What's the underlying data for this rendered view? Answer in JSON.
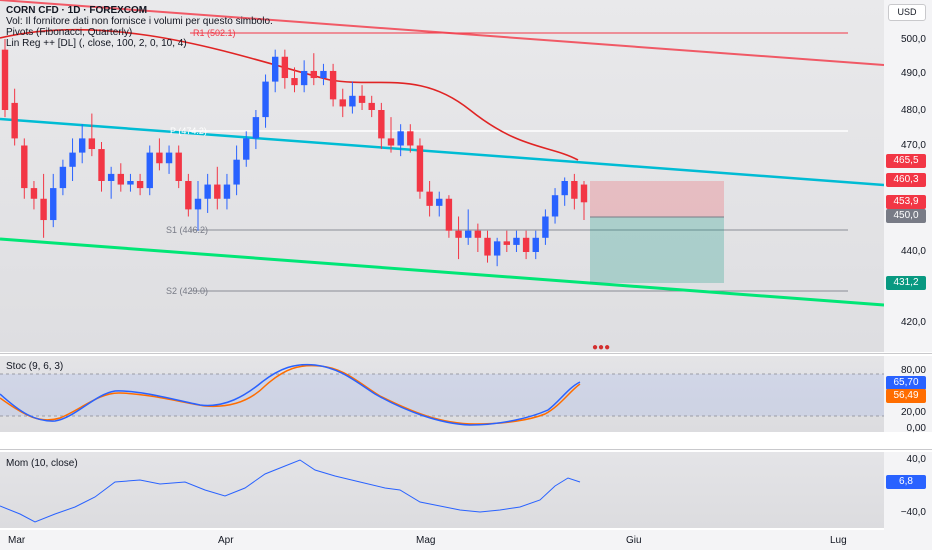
{
  "header": {
    "symbol_line": "CORN CFD · 1D · FOREXCOM",
    "vol_line": "Vol: Il fornitore dati non fornisce i volumi per questo simbolo.",
    "pivots_line": "Pivots (Fibonacci, Quarterly)",
    "linreg_line": "Lin Reg ++ [DL] (, close, 100, 2, 0, 10, 4)"
  },
  "currency_button": "USD",
  "pivots": {
    "r1": "R1 (502.1)",
    "p": "P (474.2)",
    "s1": "S1 (446.2)",
    "s2": "S2 (429.0)"
  },
  "price_axis": {
    "ticks": [
      "500,0",
      "490,0",
      "480,0",
      "470,0",
      "440,0",
      "420,0"
    ],
    "tags": [
      {
        "label": "465,5",
        "color": "#f23645"
      },
      {
        "label": "460,3",
        "color": "#f23645"
      },
      {
        "label": "453,9",
        "color": "#f23645"
      },
      {
        "label": "450,0",
        "color": "#787b86"
      },
      {
        "label": "431,2",
        "color": "#089981"
      }
    ]
  },
  "stoch": {
    "title": "Stoc (9, 6, 3)",
    "ticks": [
      "80,00",
      "20,00",
      "0,00"
    ],
    "k_value": "65,70",
    "d_value": "56,49",
    "k_color": "#2962ff",
    "d_color": "#ff6d00"
  },
  "momentum": {
    "title": "Mom (10, close)",
    "ticks": [
      "40,0",
      "−40,0"
    ],
    "value": "6,8",
    "color": "#2962ff"
  },
  "time_axis": [
    "Mar",
    "Apr",
    "Mag",
    "Giu",
    "Lug"
  ],
  "colors": {
    "up": "#2962ff",
    "down": "#f23645",
    "upper_channel": "#f23645",
    "mid_channel": "#00bcd4",
    "lower_channel": "#00e676"
  },
  "candles": [
    {
      "o": 497,
      "h": 500,
      "l": 478,
      "c": 480
    },
    {
      "o": 482,
      "h": 486,
      "l": 470,
      "c": 472
    },
    {
      "o": 470,
      "h": 472,
      "l": 455,
      "c": 458
    },
    {
      "o": 458,
      "h": 460,
      "l": 452,
      "c": 455
    },
    {
      "o": 455,
      "h": 462,
      "l": 444,
      "c": 449
    },
    {
      "o": 449,
      "h": 462,
      "l": 447,
      "c": 458
    },
    {
      "o": 458,
      "h": 466,
      "l": 456,
      "c": 464
    },
    {
      "o": 464,
      "h": 472,
      "l": 460,
      "c": 468
    },
    {
      "o": 468,
      "h": 476,
      "l": 465,
      "c": 472
    },
    {
      "o": 472,
      "h": 479,
      "l": 467,
      "c": 469
    },
    {
      "o": 469,
      "h": 471,
      "l": 457,
      "c": 460
    },
    {
      "o": 460,
      "h": 464,
      "l": 455,
      "c": 462
    },
    {
      "o": 462,
      "h": 465,
      "l": 457,
      "c": 459
    },
    {
      "o": 459,
      "h": 462,
      "l": 457,
      "c": 460
    },
    {
      "o": 460,
      "h": 462,
      "l": 456,
      "c": 458
    },
    {
      "o": 458,
      "h": 470,
      "l": 456,
      "c": 468
    },
    {
      "o": 468,
      "h": 472,
      "l": 463,
      "c": 465
    },
    {
      "o": 465,
      "h": 470,
      "l": 462,
      "c": 468
    },
    {
      "o": 468,
      "h": 470,
      "l": 458,
      "c": 460
    },
    {
      "o": 460,
      "h": 462,
      "l": 450,
      "c": 452
    },
    {
      "o": 452,
      "h": 460,
      "l": 446,
      "c": 455
    },
    {
      "o": 455,
      "h": 462,
      "l": 451,
      "c": 459
    },
    {
      "o": 459,
      "h": 464,
      "l": 452,
      "c": 455
    },
    {
      "o": 455,
      "h": 462,
      "l": 452,
      "c": 459
    },
    {
      "o": 459,
      "h": 470,
      "l": 456,
      "c": 466
    },
    {
      "o": 466,
      "h": 474,
      "l": 464,
      "c": 472
    },
    {
      "o": 472,
      "h": 480,
      "l": 469,
      "c": 478
    },
    {
      "o": 478,
      "h": 490,
      "l": 475,
      "c": 488
    },
    {
      "o": 488,
      "h": 497,
      "l": 485,
      "c": 495
    },
    {
      "o": 495,
      "h": 497,
      "l": 486,
      "c": 489
    },
    {
      "o": 489,
      "h": 492,
      "l": 485,
      "c": 487
    },
    {
      "o": 487,
      "h": 494,
      "l": 485,
      "c": 491
    },
    {
      "o": 491,
      "h": 496,
      "l": 487,
      "c": 489
    },
    {
      "o": 489,
      "h": 493,
      "l": 487,
      "c": 491
    },
    {
      "o": 491,
      "h": 493,
      "l": 481,
      "c": 483
    },
    {
      "o": 483,
      "h": 486,
      "l": 478,
      "c": 481
    },
    {
      "o": 481,
      "h": 488,
      "l": 479,
      "c": 484
    },
    {
      "o": 484,
      "h": 487,
      "l": 480,
      "c": 482
    },
    {
      "o": 482,
      "h": 484,
      "l": 478,
      "c": 480
    },
    {
      "o": 480,
      "h": 482,
      "l": 469,
      "c": 472
    },
    {
      "o": 472,
      "h": 478,
      "l": 468,
      "c": 470
    },
    {
      "o": 470,
      "h": 476,
      "l": 467,
      "c": 474
    },
    {
      "o": 474,
      "h": 476,
      "l": 468,
      "c": 470
    },
    {
      "o": 470,
      "h": 472,
      "l": 455,
      "c": 457
    },
    {
      "o": 457,
      "h": 460,
      "l": 450,
      "c": 453
    },
    {
      "o": 453,
      "h": 457,
      "l": 450,
      "c": 455
    },
    {
      "o": 455,
      "h": 456,
      "l": 444,
      "c": 446
    },
    {
      "o": 446,
      "h": 450,
      "l": 438,
      "c": 444
    },
    {
      "o": 444,
      "h": 452,
      "l": 442,
      "c": 446
    },
    {
      "o": 446,
      "h": 448,
      "l": 440,
      "c": 444
    },
    {
      "o": 444,
      "h": 446,
      "l": 437,
      "c": 439
    },
    {
      "o": 439,
      "h": 444,
      "l": 436,
      "c": 443
    },
    {
      "o": 443,
      "h": 446,
      "l": 440,
      "c": 442
    },
    {
      "o": 442,
      "h": 446,
      "l": 440,
      "c": 444
    },
    {
      "o": 444,
      "h": 446,
      "l": 438,
      "c": 440
    },
    {
      "o": 440,
      "h": 446,
      "l": 438,
      "c": 444
    },
    {
      "o": 444,
      "h": 452,
      "l": 442,
      "c": 450
    },
    {
      "o": 450,
      "h": 458,
      "l": 448,
      "c": 456
    },
    {
      "o": 456,
      "h": 461,
      "l": 453,
      "c": 460
    },
    {
      "o": 460,
      "h": 462,
      "l": 452,
      "c": 455
    },
    {
      "o": 459,
      "h": 460,
      "l": 449,
      "c": 454
    }
  ]
}
